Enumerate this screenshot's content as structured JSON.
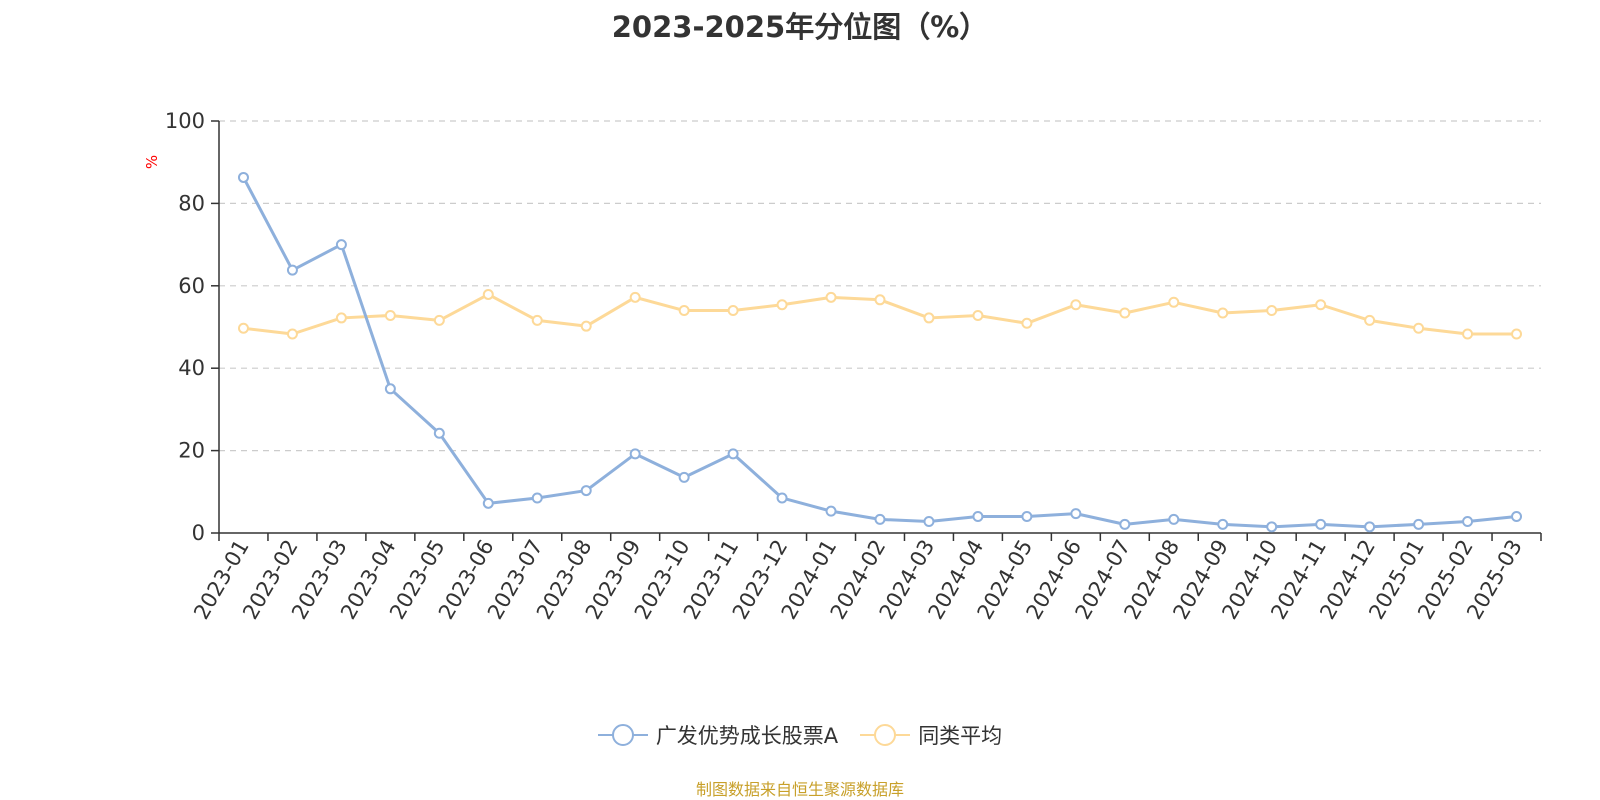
{
  "colors": {
    "series1": "#8EB0DC",
    "series2": "#FDD998",
    "grid": "#cccccc",
    "axis": "#333333",
    "ylabel": "#ff0000",
    "source": "#C8A02A"
  },
  "chart_data": {
    "type": "line",
    "title": "2023-2025年分位图（%）",
    "xlabel": "",
    "ylabel": "%",
    "ylim": [
      0,
      100
    ],
    "yticks": [
      0,
      20,
      40,
      60,
      80,
      100
    ],
    "grid": true,
    "legend_position": "bottom",
    "categories": [
      "2023-01",
      "2023-02",
      "2023-03",
      "2023-04",
      "2023-05",
      "2023-06",
      "2023-07",
      "2023-08",
      "2023-09",
      "2023-10",
      "2023-11",
      "2023-12",
      "2024-01",
      "2024-02",
      "2024-03",
      "2024-04",
      "2024-05",
      "2024-06",
      "2024-07",
      "2024-08",
      "2024-09",
      "2024-10",
      "2024-11",
      "2024-12",
      "2025-01",
      "2025-02",
      "2025-03"
    ],
    "series": [
      {
        "name": "广发优势成长股票A",
        "color": "#8EB0DC",
        "values": [
          86.3,
          63.8,
          70.0,
          35.0,
          24.2,
          7.2,
          8.5,
          10.3,
          19.2,
          13.5,
          19.2,
          8.5,
          5.3,
          3.3,
          2.8,
          4.0,
          4.0,
          4.7,
          2.1,
          3.3,
          2.1,
          1.5,
          2.1,
          1.5,
          2.1,
          2.8,
          4.0
        ]
      },
      {
        "name": "同类平均",
        "color": "#FDD998",
        "values": [
          49.7,
          48.3,
          52.2,
          52.8,
          51.6,
          57.9,
          51.6,
          50.2,
          57.2,
          54.0,
          54.0,
          55.4,
          57.2,
          56.6,
          52.2,
          52.8,
          50.9,
          55.4,
          53.4,
          56.0,
          53.4,
          54.0,
          55.4,
          51.6,
          49.7,
          48.3,
          48.3
        ]
      }
    ]
  },
  "source_note": "制图数据来自恒生聚源数据库"
}
